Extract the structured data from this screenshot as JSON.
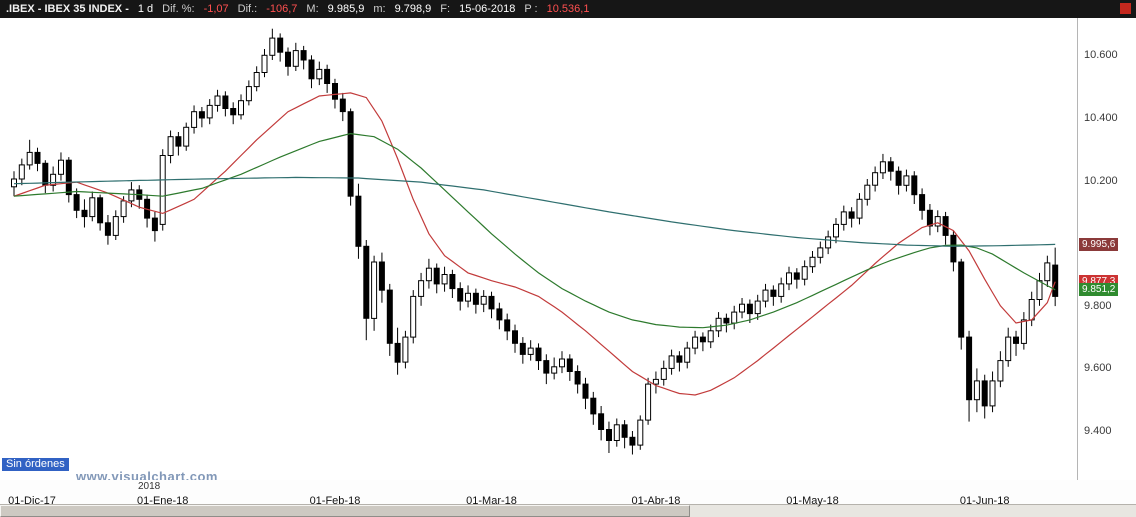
{
  "titlebar": {
    "symbol": ".IBEX - IBEX 35 INDEX -",
    "timeframe": "1 d",
    "dif_pct_label": "Dif. %:",
    "dif_pct_value": "-1,07",
    "dif_label": "Dif.:",
    "dif_value": "-106,7",
    "high_label": "M:",
    "high_value": "9.985,9",
    "low_label": "m:",
    "low_value": "9.798,9",
    "date_label": "F:",
    "date_value": "15-06-2018",
    "p_label": "P :",
    "p_value": "10.536,1",
    "close_icon": "red-square-icon"
  },
  "status": {
    "orders_label": "Sin órdenes"
  },
  "watermark_text": "www.visualchart.com",
  "colors": {
    "negative_value": "#ff5050",
    "up_candle": "#ffffff",
    "down_candle": "#000000",
    "ma_fast": "#c23b3b",
    "ma_medium": "#2d7a2d",
    "ma_slow": "#2f6f6f",
    "orders_badge_bg": "#3162C4",
    "watermark": "#8298B8"
  },
  "chart_data": {
    "type": "candlestick",
    "title": "IBEX 35 INDEX",
    "timeframe": "1 d",
    "date_range": [
      "01-Dic-17",
      "15-06-2018"
    ],
    "year_label": "2018",
    "ylim": [
      9250,
      10700
    ],
    "up_color": "#ffffff",
    "down_color": "#000000",
    "y_ticks": [
      {
        "label": "10.600",
        "value": 10600
      },
      {
        "label": "10.400",
        "value": 10400
      },
      {
        "label": "10.200",
        "value": 10200
      },
      {
        "label": "9.800",
        "value": 9800
      },
      {
        "label": "9.600",
        "value": 9600
      },
      {
        "label": "9.400",
        "value": 9400
      }
    ],
    "x_ticks": [
      {
        "label": "01-Dic-17",
        "index": 0
      },
      {
        "label": "01-Ene-18",
        "index": 19
      },
      {
        "label": "01-Feb-18",
        "index": 41
      },
      {
        "label": "01-Mar-18",
        "index": 61
      },
      {
        "label": "01-Abr-18",
        "index": 82
      },
      {
        "label": "01-May-18",
        "index": 102
      },
      {
        "label": "01-Jun-18",
        "index": 124
      }
    ],
    "axis_tags": [
      {
        "label": "9.995,6",
        "value": 9995.6,
        "bg": "#8b3a3a"
      },
      {
        "label": "9.877,3",
        "value": 9877.3,
        "bg": "#cc3333"
      },
      {
        "label": "9.851,2",
        "value": 9851.2,
        "bg": "#2f8b2f"
      }
    ],
    "candles": [
      [
        10180,
        10230,
        10150,
        10205
      ],
      [
        10205,
        10270,
        10185,
        10250
      ],
      [
        10250,
        10330,
        10235,
        10290
      ],
      [
        10290,
        10305,
        10230,
        10255
      ],
      [
        10255,
        10265,
        10160,
        10185
      ],
      [
        10185,
        10245,
        10165,
        10220
      ],
      [
        10220,
        10290,
        10200,
        10265
      ],
      [
        10265,
        10275,
        10130,
        10155
      ],
      [
        10155,
        10175,
        10080,
        10105
      ],
      [
        10105,
        10140,
        10050,
        10085
      ],
      [
        10085,
        10165,
        10070,
        10145
      ],
      [
        10145,
        10155,
        10040,
        10065
      ],
      [
        10065,
        10090,
        9995,
        10025
      ],
      [
        10025,
        10105,
        10010,
        10085
      ],
      [
        10085,
        10150,
        10065,
        10135
      ],
      [
        10135,
        10195,
        10115,
        10170
      ],
      [
        10170,
        10185,
        10110,
        10140
      ],
      [
        10140,
        10155,
        10050,
        10080
      ],
      [
        10080,
        10100,
        10005,
        10040
      ],
      [
        10060,
        10300,
        10040,
        10280
      ],
      [
        10280,
        10360,
        10255,
        10340
      ],
      [
        10340,
        10355,
        10280,
        10310
      ],
      [
        10310,
        10385,
        10295,
        10370
      ],
      [
        10370,
        10440,
        10350,
        10420
      ],
      [
        10420,
        10435,
        10370,
        10400
      ],
      [
        10400,
        10460,
        10380,
        10440
      ],
      [
        10440,
        10490,
        10420,
        10470
      ],
      [
        10470,
        10485,
        10405,
        10430
      ],
      [
        10430,
        10450,
        10380,
        10410
      ],
      [
        10410,
        10475,
        10395,
        10455
      ],
      [
        10455,
        10520,
        10440,
        10500
      ],
      [
        10500,
        10565,
        10485,
        10545
      ],
      [
        10545,
        10620,
        10530,
        10600
      ],
      [
        10600,
        10685,
        10585,
        10655
      ],
      [
        10655,
        10670,
        10580,
        10610
      ],
      [
        10610,
        10625,
        10535,
        10565
      ],
      [
        10565,
        10640,
        10550,
        10615
      ],
      [
        10615,
        10630,
        10555,
        10585
      ],
      [
        10585,
        10600,
        10495,
        10525
      ],
      [
        10525,
        10580,
        10505,
        10555
      ],
      [
        10555,
        10570,
        10480,
        10510
      ],
      [
        10510,
        10525,
        10430,
        10460
      ],
      [
        10460,
        10480,
        10390,
        10420
      ],
      [
        10420,
        10430,
        10120,
        10150
      ],
      [
        10150,
        10190,
        9950,
        9990
      ],
      [
        9990,
        10010,
        9690,
        9760
      ],
      [
        9760,
        9960,
        9720,
        9940
      ],
      [
        9940,
        9970,
        9810,
        9850
      ],
      [
        9850,
        9870,
        9640,
        9680
      ],
      [
        9680,
        9730,
        9580,
        9620
      ],
      [
        9620,
        9720,
        9600,
        9700
      ],
      [
        9700,
        9850,
        9680,
        9830
      ],
      [
        9830,
        9905,
        9800,
        9880
      ],
      [
        9880,
        9950,
        9855,
        9920
      ],
      [
        9920,
        9935,
        9840,
        9870
      ],
      [
        9870,
        9925,
        9845,
        9900
      ],
      [
        9900,
        9915,
        9825,
        9855
      ],
      [
        9855,
        9875,
        9785,
        9815
      ],
      [
        9815,
        9865,
        9795,
        9840
      ],
      [
        9840,
        9855,
        9775,
        9805
      ],
      [
        9805,
        9850,
        9780,
        9830
      ],
      [
        9830,
        9845,
        9760,
        9790
      ],
      [
        9790,
        9810,
        9725,
        9755
      ],
      [
        9755,
        9775,
        9690,
        9720
      ],
      [
        9720,
        9740,
        9650,
        9680
      ],
      [
        9680,
        9700,
        9615,
        9645
      ],
      [
        9645,
        9690,
        9625,
        9665
      ],
      [
        9665,
        9680,
        9595,
        9625
      ],
      [
        9625,
        9645,
        9550,
        9585
      ],
      [
        9585,
        9635,
        9565,
        9605
      ],
      [
        9605,
        9655,
        9585,
        9630
      ],
      [
        9630,
        9645,
        9560,
        9590
      ],
      [
        9590,
        9610,
        9520,
        9550
      ],
      [
        9550,
        9570,
        9470,
        9505
      ],
      [
        9505,
        9525,
        9420,
        9455
      ],
      [
        9455,
        9480,
        9370,
        9405
      ],
      [
        9405,
        9430,
        9330,
        9370
      ],
      [
        9370,
        9440,
        9350,
        9420
      ],
      [
        9420,
        9435,
        9345,
        9380
      ],
      [
        9380,
        9400,
        9325,
        9355
      ],
      [
        9355,
        9450,
        9340,
        9435
      ],
      [
        9435,
        9570,
        9420,
        9550
      ],
      [
        9550,
        9590,
        9520,
        9565
      ],
      [
        9565,
        9625,
        9545,
        9600
      ],
      [
        9600,
        9660,
        9580,
        9640
      ],
      [
        9640,
        9655,
        9590,
        9620
      ],
      [
        9620,
        9685,
        9600,
        9665
      ],
      [
        9665,
        9720,
        9645,
        9700
      ],
      [
        9700,
        9715,
        9655,
        9685
      ],
      [
        9685,
        9740,
        9665,
        9720
      ],
      [
        9720,
        9780,
        9700,
        9760
      ],
      [
        9760,
        9775,
        9715,
        9745
      ],
      [
        9745,
        9800,
        9725,
        9780
      ],
      [
        9780,
        9825,
        9760,
        9805
      ],
      [
        9805,
        9820,
        9745,
        9775
      ],
      [
        9775,
        9835,
        9755,
        9815
      ],
      [
        9815,
        9870,
        9795,
        9850
      ],
      [
        9850,
        9865,
        9800,
        9830
      ],
      [
        9830,
        9890,
        9810,
        9870
      ],
      [
        9870,
        9925,
        9850,
        9905
      ],
      [
        9905,
        9920,
        9855,
        9885
      ],
      [
        9885,
        9945,
        9865,
        9925
      ],
      [
        9925,
        9975,
        9905,
        9955
      ],
      [
        9955,
        10005,
        9935,
        9985
      ],
      [
        9985,
        10040,
        9965,
        10020
      ],
      [
        10020,
        10080,
        10000,
        10060
      ],
      [
        10060,
        10120,
        10040,
        10100
      ],
      [
        10100,
        10115,
        10050,
        10080
      ],
      [
        10080,
        10160,
        10060,
        10140
      ],
      [
        10140,
        10205,
        10120,
        10185
      ],
      [
        10185,
        10245,
        10165,
        10225
      ],
      [
        10225,
        10285,
        10205,
        10260
      ],
      [
        10260,
        10275,
        10200,
        10230
      ],
      [
        10230,
        10245,
        10155,
        10185
      ],
      [
        10185,
        10235,
        10165,
        10215
      ],
      [
        10215,
        10230,
        10125,
        10155
      ],
      [
        10155,
        10175,
        10075,
        10105
      ],
      [
        10105,
        10125,
        10025,
        10055
      ],
      [
        10055,
        10105,
        10035,
        10085
      ],
      [
        10085,
        10100,
        9995,
        10025
      ],
      [
        10025,
        10040,
        9910,
        9940
      ],
      [
        9940,
        9950,
        9660,
        9700
      ],
      [
        9700,
        9720,
        9430,
        9500
      ],
      [
        9500,
        9600,
        9460,
        9560
      ],
      [
        9560,
        9580,
        9440,
        9480
      ],
      [
        9480,
        9590,
        9460,
        9560
      ],
      [
        9560,
        9655,
        9540,
        9625
      ],
      [
        9625,
        9730,
        9605,
        9700
      ],
      [
        9700,
        9720,
        9640,
        9680
      ],
      [
        9680,
        9780,
        9660,
        9755
      ],
      [
        9755,
        9845,
        9735,
        9820
      ],
      [
        9820,
        9905,
        9800,
        9880
      ],
      [
        9880,
        9960,
        9860,
        9937
      ],
      [
        9930,
        9986,
        9799,
        9830
      ]
    ],
    "overlays": [
      {
        "name": "ma-fast-red",
        "color": "#c23b3b",
        "points": [
          [
            0,
            10150
          ],
          [
            4,
            10185
          ],
          [
            8,
            10195
          ],
          [
            12,
            10160
          ],
          [
            16,
            10115
          ],
          [
            19,
            10095
          ],
          [
            23,
            10140
          ],
          [
            27,
            10230
          ],
          [
            31,
            10330
          ],
          [
            35,
            10420
          ],
          [
            39,
            10470
          ],
          [
            43,
            10480
          ],
          [
            45,
            10465
          ],
          [
            47,
            10390
          ],
          [
            49,
            10270
          ],
          [
            51,
            10140
          ],
          [
            53,
            10030
          ],
          [
            55,
            9960
          ],
          [
            58,
            9905
          ],
          [
            61,
            9880
          ],
          [
            64,
            9860
          ],
          [
            67,
            9830
          ],
          [
            70,
            9780
          ],
          [
            73,
            9720
          ],
          [
            76,
            9655
          ],
          [
            79,
            9590
          ],
          [
            82,
            9545
          ],
          [
            85,
            9520
          ],
          [
            87,
            9515
          ],
          [
            89,
            9530
          ],
          [
            92,
            9570
          ],
          [
            95,
            9625
          ],
          [
            98,
            9685
          ],
          [
            101,
            9745
          ],
          [
            104,
            9805
          ],
          [
            107,
            9865
          ],
          [
            110,
            9935
          ],
          [
            113,
            10000
          ],
          [
            116,
            10050
          ],
          [
            118,
            10065
          ],
          [
            120,
            10040
          ],
          [
            122,
            9975
          ],
          [
            124,
            9885
          ],
          [
            126,
            9800
          ],
          [
            128,
            9745
          ],
          [
            130,
            9755
          ],
          [
            132,
            9810
          ],
          [
            133,
            9877
          ]
        ]
      },
      {
        "name": "ma-medium-green",
        "color": "#2d7a2d",
        "points": [
          [
            0,
            10150
          ],
          [
            8,
            10165
          ],
          [
            16,
            10155
          ],
          [
            19,
            10150
          ],
          [
            24,
            10175
          ],
          [
            29,
            10220
          ],
          [
            34,
            10275
          ],
          [
            39,
            10325
          ],
          [
            43,
            10350
          ],
          [
            46,
            10340
          ],
          [
            49,
            10300
          ],
          [
            52,
            10240
          ],
          [
            55,
            10170
          ],
          [
            58,
            10100
          ],
          [
            61,
            10030
          ],
          [
            64,
            9965
          ],
          [
            67,
            9905
          ],
          [
            70,
            9855
          ],
          [
            73,
            9815
          ],
          [
            76,
            9780
          ],
          [
            79,
            9755
          ],
          [
            82,
            9740
          ],
          [
            85,
            9732
          ],
          [
            88,
            9730
          ],
          [
            91,
            9738
          ],
          [
            94,
            9755
          ],
          [
            97,
            9780
          ],
          [
            100,
            9810
          ],
          [
            103,
            9845
          ],
          [
            106,
            9880
          ],
          [
            109,
            9915
          ],
          [
            112,
            9945
          ],
          [
            115,
            9970
          ],
          [
            117,
            9985
          ],
          [
            119,
            9993
          ],
          [
            121,
            9994
          ],
          [
            123,
            9985
          ],
          [
            125,
            9965
          ],
          [
            127,
            9935
          ],
          [
            129,
            9905
          ],
          [
            131,
            9878
          ],
          [
            133,
            9851
          ]
        ]
      },
      {
        "name": "ma-slow-teal",
        "color": "#2f6f6f",
        "points": [
          [
            0,
            10190
          ],
          [
            12,
            10198
          ],
          [
            24,
            10205
          ],
          [
            36,
            10210
          ],
          [
            44,
            10208
          ],
          [
            52,
            10195
          ],
          [
            60,
            10170
          ],
          [
            68,
            10135
          ],
          [
            76,
            10100
          ],
          [
            84,
            10068
          ],
          [
            92,
            10040
          ],
          [
            100,
            10018
          ],
          [
            108,
            10002
          ],
          [
            114,
            9994
          ],
          [
            120,
            9990
          ],
          [
            126,
            9992
          ],
          [
            133,
            9996
          ]
        ]
      }
    ]
  }
}
